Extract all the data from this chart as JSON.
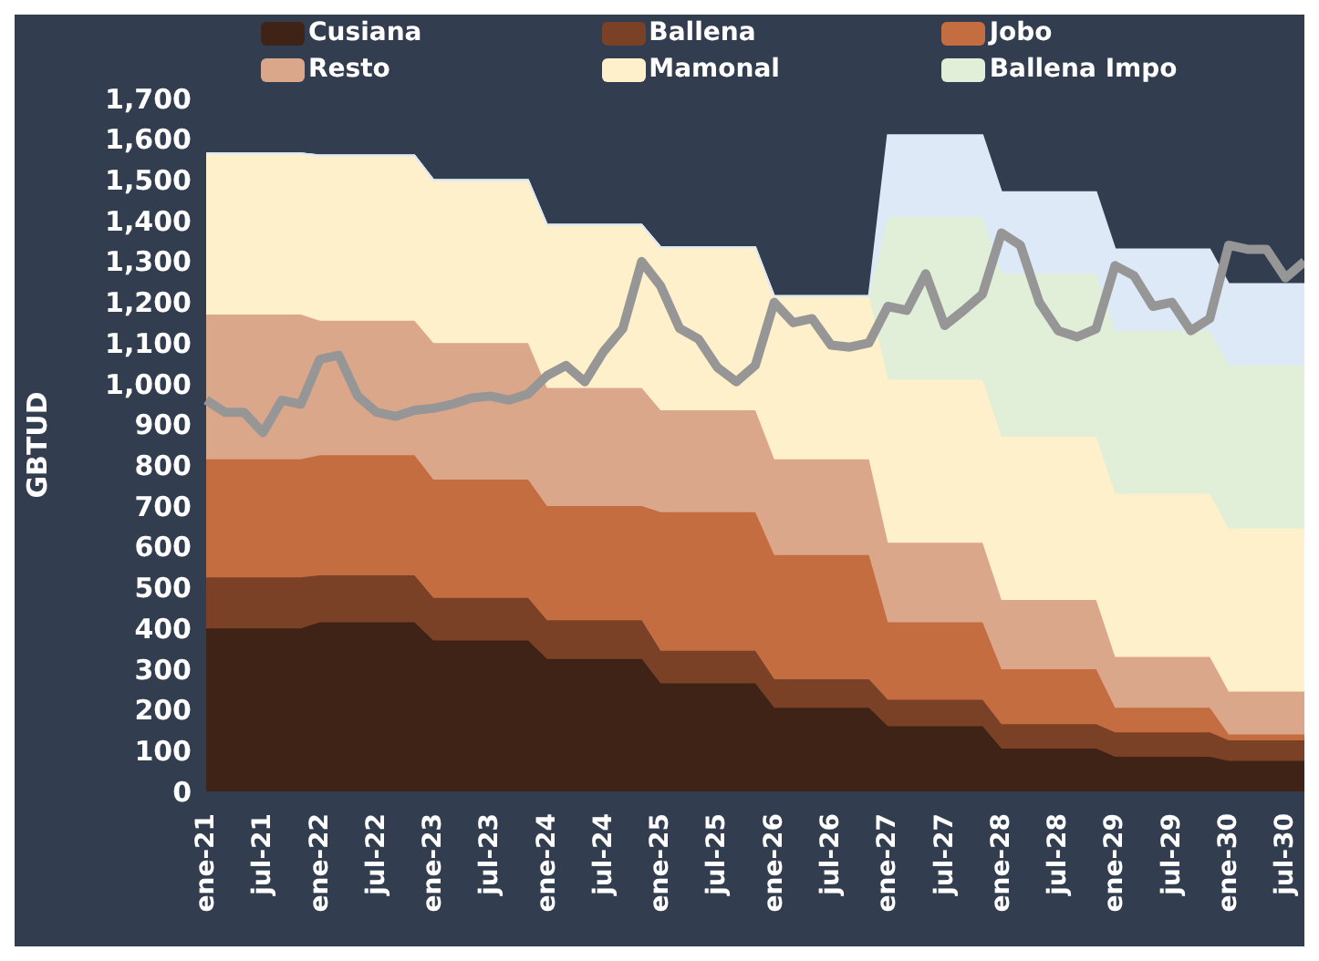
{
  "chart_data": {
    "type": "area",
    "stacked": true,
    "ylabel": "GBTUD",
    "ylim": [
      0,
      1700
    ],
    "yticks": [
      0,
      {
        "value": 100,
        "label": "100"
      },
      200,
      300,
      400,
      500,
      600,
      700,
      800,
      900,
      {
        "value": 1000,
        "label": "1,000"
      },
      {
        "value": 1100,
        "label": "1,100"
      },
      {
        "value": 1200,
        "label": "1,200"
      },
      {
        "value": 1300,
        "label": "1,300"
      },
      {
        "value": 1400,
        "label": "1,400"
      },
      {
        "value": 1500,
        "label": "1,500"
      },
      {
        "value": 1600,
        "label": "1,600"
      },
      {
        "value": 1700,
        "label": "1,700"
      }
    ],
    "grid": false,
    "legend": "top",
    "categories": [
      "ene-21",
      null,
      null,
      "jul-21",
      null,
      null,
      "ene-22",
      null,
      null,
      "jul-22",
      null,
      null,
      "ene-23",
      null,
      null,
      "jul-23",
      null,
      null,
      "ene-24",
      null,
      null,
      "jul-24",
      null,
      null,
      "ene-25",
      null,
      null,
      "jul-25",
      null,
      null,
      "ene-26",
      null,
      null,
      "jul-26",
      null,
      null,
      "ene-27",
      null,
      null,
      "jul-27",
      null,
      null,
      "ene-28",
      null,
      null,
      "jul-28",
      null,
      null,
      "ene-29",
      null,
      null,
      "jul-29",
      null,
      null,
      "ene-30",
      null,
      null,
      "jul-30",
      null
    ],
    "series": [
      {
        "name": "Cusiana",
        "color": "#3f2316",
        "values": [
          400,
          400,
          400,
          400,
          400,
          400,
          415,
          415,
          415,
          415,
          415,
          415,
          370,
          370,
          370,
          370,
          370,
          370,
          325,
          325,
          325,
          325,
          325,
          325,
          265,
          265,
          265,
          265,
          265,
          265,
          205,
          205,
          205,
          205,
          205,
          205,
          160,
          160,
          160,
          160,
          160,
          160,
          105,
          105,
          105,
          105,
          105,
          105,
          85,
          85,
          85,
          85,
          85,
          85,
          75,
          75,
          75,
          75,
          75
        ]
      },
      {
        "name": "Ballena",
        "color": "#7b4126",
        "values": [
          125,
          125,
          125,
          125,
          125,
          125,
          115,
          115,
          115,
          115,
          115,
          115,
          105,
          105,
          105,
          105,
          105,
          105,
          95,
          95,
          95,
          95,
          95,
          95,
          80,
          80,
          80,
          80,
          80,
          80,
          70,
          70,
          70,
          70,
          70,
          70,
          65,
          65,
          65,
          65,
          65,
          65,
          60,
          60,
          60,
          60,
          60,
          60,
          60,
          60,
          60,
          60,
          60,
          60,
          50,
          50,
          50,
          50,
          50
        ]
      },
      {
        "name": "Jobo",
        "color": "#c46d41",
        "values": [
          290,
          290,
          290,
          290,
          290,
          290,
          295,
          295,
          295,
          295,
          295,
          295,
          290,
          290,
          290,
          290,
          290,
          290,
          280,
          280,
          280,
          280,
          280,
          280,
          340,
          340,
          340,
          340,
          340,
          340,
          305,
          305,
          305,
          305,
          305,
          305,
          190,
          190,
          190,
          190,
          190,
          190,
          135,
          135,
          135,
          135,
          135,
          135,
          60,
          60,
          60,
          60,
          60,
          60,
          15,
          15,
          15,
          15,
          15
        ]
      },
      {
        "name": "Resto",
        "color": "#dba78b",
        "values": [
          355,
          355,
          355,
          355,
          355,
          355,
          330,
          330,
          330,
          330,
          330,
          330,
          335,
          335,
          335,
          335,
          335,
          335,
          290,
          290,
          290,
          290,
          290,
          290,
          250,
          250,
          250,
          250,
          250,
          250,
          235,
          235,
          235,
          235,
          235,
          235,
          195,
          195,
          195,
          195,
          195,
          195,
          170,
          170,
          170,
          170,
          170,
          170,
          125,
          125,
          125,
          125,
          125,
          125,
          105,
          105,
          105,
          105,
          105
        ]
      },
      {
        "name": "Mamonal",
        "color": "#fff0cc",
        "values": [
          395,
          395,
          395,
          395,
          395,
          395,
          405,
          405,
          405,
          405,
          405,
          405,
          400,
          400,
          400,
          400,
          400,
          400,
          400,
          400,
          400,
          400,
          400,
          400,
          400,
          400,
          400,
          400,
          400,
          400,
          400,
          400,
          400,
          400,
          400,
          400,
          400,
          400,
          400,
          400,
          400,
          400,
          400,
          400,
          400,
          400,
          400,
          400,
          400,
          400,
          400,
          400,
          400,
          400,
          400,
          400,
          400,
          400,
          400
        ]
      },
      {
        "name": "Ballena Impo",
        "color": "#e1efd9",
        "values": [
          0,
          0,
          0,
          0,
          0,
          0,
          0,
          0,
          0,
          0,
          0,
          0,
          0,
          0,
          0,
          0,
          0,
          0,
          0,
          0,
          0,
          0,
          0,
          0,
          0,
          0,
          0,
          0,
          0,
          0,
          0,
          0,
          0,
          0,
          0,
          0,
          400,
          400,
          400,
          400,
          400,
          400,
          400,
          400,
          400,
          400,
          400,
          400,
          400,
          400,
          400,
          400,
          400,
          400,
          400,
          400,
          400,
          400,
          400
        ]
      },
      {
        "color": "#dde9f6",
        "values": [
          0,
          0,
          0,
          0,
          0,
          0,
          0,
          0,
          0,
          0,
          0,
          0,
          0,
          0,
          0,
          0,
          0,
          0,
          0,
          0,
          0,
          0,
          0,
          0,
          0,
          0,
          0,
          0,
          0,
          0,
          0,
          0,
          0,
          0,
          0,
          0,
          200,
          200,
          200,
          200,
          200,
          200,
          200,
          200,
          200,
          200,
          200,
          200,
          200,
          200,
          200,
          200,
          200,
          200,
          200,
          200,
          200,
          200,
          200
        ]
      },
      {
        "type": "line",
        "color": "#969696",
        "values": [
          960,
          930,
          930,
          880,
          960,
          950,
          1060,
          1070,
          970,
          930,
          920,
          935,
          940,
          950,
          965,
          970,
          960,
          975,
          1020,
          1045,
          1005,
          1080,
          1135,
          1300,
          1240,
          1136,
          1110,
          1040,
          1005,
          1045,
          1200,
          1150,
          1160,
          1095,
          1090,
          1100,
          1190,
          1180,
          1270,
          1143,
          1180,
          1220,
          1370,
          1340,
          1200,
          1130,
          1115,
          1135,
          1290,
          1265,
          1190,
          1200,
          1130,
          1160,
          1340,
          1330,
          1330,
          1260,
          1300
        ]
      }
    ]
  }
}
